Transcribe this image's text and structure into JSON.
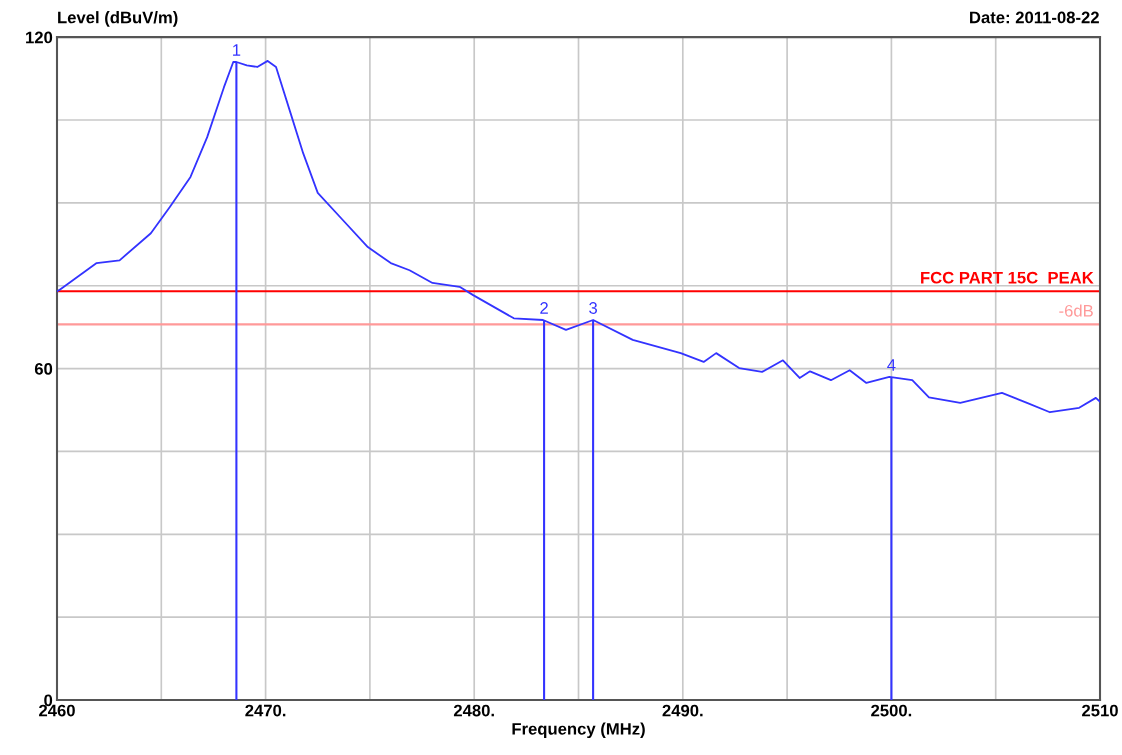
{
  "chart_data": {
    "type": "line",
    "ylabel": "Level (dBuV/m)",
    "xlabel": "Frequency (MHz)",
    "subtitle": "Date: 2011-08-22",
    "xlim": [
      2460,
      2510
    ],
    "ylim": [
      0,
      120
    ],
    "xticks": [
      2460,
      {
        "value": 2465,
        "label": null
      },
      {
        "value": 2470,
        "label": "2470."
      },
      {
        "value": 2475,
        "label": null
      },
      {
        "value": 2480,
        "label": "2480."
      },
      {
        "value": 2485,
        "label": null
      },
      {
        "value": 2490,
        "label": "2490."
      },
      {
        "value": 2495,
        "label": null
      },
      {
        "value": 2500,
        "label": "2500."
      },
      {
        "value": 2505,
        "label": null
      },
      2510
    ],
    "yticks": [
      0,
      {
        "value": 15,
        "label": null
      },
      {
        "value": 30,
        "label": null
      },
      {
        "value": 45,
        "label": null
      },
      60,
      {
        "value": 75,
        "label": null
      },
      {
        "value": 90,
        "label": null
      },
      {
        "value": 105,
        "label": null
      },
      120
    ],
    "grid": true,
    "legend": false,
    "series": [
      {
        "color": "#3333ff",
        "x": [
          2460,
          2460.1,
          2461.9,
          2463,
          2464.5,
          2465.4,
          2466.4,
          2467.2,
          2468,
          2468.45,
          2468.6,
          2469.1,
          2469.6,
          2470.1,
          2470.5,
          2471.2,
          2471.8,
          2472.5,
          2473.7,
          2474.9,
          2476,
          2476.9,
          2478,
          2479.3,
          2479.95,
          2481.9,
          2483.3,
          2484.4,
          2485.7,
          2487.6,
          2489.9,
          2491,
          2491.6,
          2492.7,
          2493.8,
          2494.8,
          2495.6,
          2496.1,
          2497.1,
          2498,
          2498.8,
          2499.9,
          2501,
          2501.8,
          2503.3,
          2505.3,
          2506.5,
          2507.6,
          2509,
          2509.8,
          2510
        ],
        "values": [
          74,
          74.2,
          79.1,
          79.6,
          84.5,
          89.2,
          94.7,
          101.9,
          110.9,
          115.5,
          115.5,
          114.9,
          114.6,
          115.7,
          114.6,
          106.2,
          99,
          91.8,
          86.9,
          82,
          79.1,
          77.8,
          75.5,
          74.8,
          73.3,
          69.1,
          68.8,
          67,
          68.8,
          65.2,
          62.8,
          61.2,
          62.8,
          60.1,
          59.4,
          61.5,
          58.3,
          59.5,
          57.9,
          59.7,
          57.4,
          58.5,
          57.9,
          54.8,
          53.8,
          55.6,
          53.8,
          52.1,
          52.9,
          54.7,
          54
        ]
      },
      {
        "type": "bar",
        "color": "#3333ff",
        "x": [
          2468.6,
          2483.35,
          2485.7,
          2500
        ],
        "values": [
          115.5,
          68.8,
          68.8,
          58.5
        ]
      }
    ],
    "ref_lines": [
      {
        "axis": "y",
        "value": 74,
        "label": "FCC PART 15C  PEAK",
        "color": "#ff0000"
      },
      {
        "axis": "y",
        "value": 68,
        "label": "-6dB",
        "color": "#ff9999"
      }
    ],
    "annotations": [
      {
        "text": "1",
        "x": 2468.6,
        "y": 115.5
      },
      {
        "text": "2",
        "x": 2483.35,
        "y": 68.8
      },
      {
        "text": "3",
        "x": 2485.7,
        "y": 68.8
      },
      {
        "text": "4",
        "x": 2500,
        "y": 58.5
      }
    ]
  }
}
